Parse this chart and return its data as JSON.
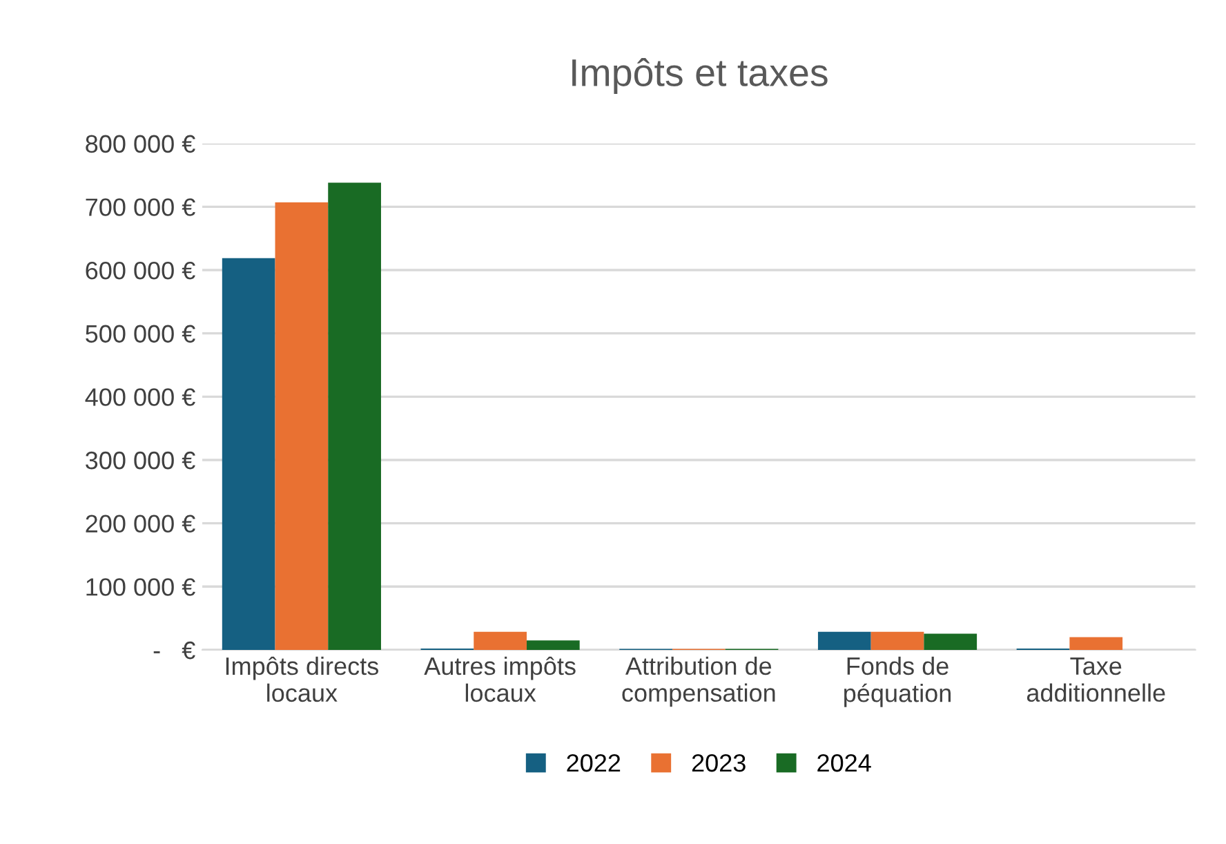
{
  "chart_data": {
    "type": "bar",
    "title": "Impôts et taxes",
    "categories": [
      "Impôts directs\nlocaux",
      "Autres impôts\nlocaux",
      "Attribution de\ncompensation",
      "Fonds de\npéquation",
      "Taxe\nadditionnelle"
    ],
    "series": [
      {
        "name": "2022",
        "color": "#156082",
        "values": [
          619000,
          2000,
          1500,
          28700,
          2000
        ]
      },
      {
        "name": "2023",
        "color": "#e97132",
        "values": [
          707000,
          28700,
          1500,
          28700,
          20000
        ]
      },
      {
        "name": "2024",
        "color": "#196b24",
        "values": [
          738000,
          15000,
          1500,
          25500,
          null
        ]
      }
    ],
    "ylim": [
      0,
      800000
    ],
    "yticks": [
      {
        "value": 0,
        "label": "-   €"
      },
      {
        "value": 100000,
        "label": "100 000 €"
      },
      {
        "value": 200000,
        "label": "200 000 €"
      },
      {
        "value": 300000,
        "label": "300 000 €"
      },
      {
        "value": 400000,
        "label": "400 000 €"
      },
      {
        "value": 500000,
        "label": "500 000 €"
      },
      {
        "value": 600000,
        "label": "600 000 €"
      },
      {
        "value": 700000,
        "label": "700 000 €"
      },
      {
        "value": 800000,
        "label": "800 000 €"
      }
    ],
    "grid": "y",
    "legend": "bottom"
  }
}
